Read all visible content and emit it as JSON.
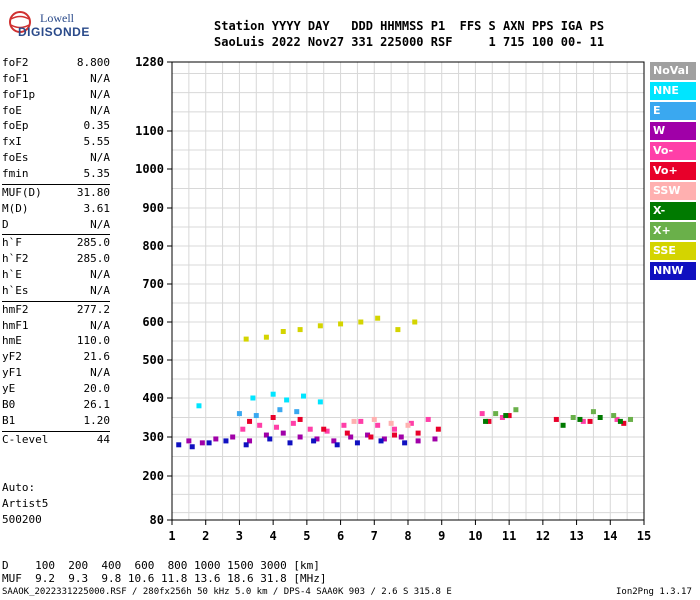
{
  "logo": {
    "line1": "Lowell",
    "line2": "DIGISONDE"
  },
  "header": {
    "row1": "Station YYYY DAY   DDD HHMMSS P1  FFS S AXN PPS IGA PS",
    "row2": "SaoLuis 2022 Nov27 331 225000 RSF     1 715 100 00- 11"
  },
  "params": [
    {
      "label": "foF2",
      "value": "8.800"
    },
    {
      "label": "foF1",
      "value": "N/A"
    },
    {
      "label": "foF1p",
      "value": "N/A"
    },
    {
      "label": "foE",
      "value": "N/A"
    },
    {
      "label": "foEp",
      "value": "0.35"
    },
    {
      "label": "fxI",
      "value": "5.55"
    },
    {
      "label": "foEs",
      "value": "N/A"
    },
    {
      "label": "fmin",
      "value": "5.35"
    },
    {
      "label": "MUF(D)",
      "value": "31.80"
    },
    {
      "label": "M(D)",
      "value": "3.61"
    },
    {
      "label": "D",
      "value": "N/A"
    },
    {
      "label": "h`F",
      "value": "285.0"
    },
    {
      "label": "h`F2",
      "value": "285.0"
    },
    {
      "label": "h`E",
      "value": "N/A"
    },
    {
      "label": "h`Es",
      "value": "N/A"
    },
    {
      "label": "hmF2",
      "value": "277.2"
    },
    {
      "label": "hmF1",
      "value": "N/A"
    },
    {
      "label": "hmE",
      "value": "110.0"
    },
    {
      "label": "yF2",
      "value": "21.6"
    },
    {
      "label": "yF1",
      "value": "N/A"
    },
    {
      "label": "yE",
      "value": "20.0"
    },
    {
      "label": "B0",
      "value": "26.1"
    },
    {
      "label": "B1",
      "value": "1.20"
    },
    {
      "label": "C-level",
      "value": "44"
    }
  ],
  "autoscaling": {
    "line1": "Auto:",
    "line2": "Artist5",
    "line3": "500200"
  },
  "legend": [
    {
      "label": "NoVal",
      "color": "#a0a0a0",
      "text_color": "#ffffff"
    },
    {
      "label": "NNE",
      "color": "#00e5ff",
      "text_color": "#ffffff"
    },
    {
      "label": "E",
      "color": "#3aa8f0",
      "text_color": "#ffffff"
    },
    {
      "label": "W",
      "color": "#a000a8",
      "text_color": "#ffffff"
    },
    {
      "label": "Vo-",
      "color": "#ff3fa8",
      "text_color": "#ffffff"
    },
    {
      "label": "Vo+",
      "color": "#e8002a",
      "text_color": "#ffffff"
    },
    {
      "label": "SSW",
      "color": "#ffb0b0",
      "text_color": "#ffffff"
    },
    {
      "label": "X-",
      "color": "#007a00",
      "text_color": "#ffffff"
    },
    {
      "label": "X+",
      "color": "#6ab04a",
      "text_color": "#ffffff"
    },
    {
      "label": "SSE",
      "color": "#d4d400",
      "text_color": "#ffffff"
    },
    {
      "label": "NNW",
      "color": "#1010c0",
      "text_color": "#ffffff"
    }
  ],
  "muf_table": {
    "row1": "D    100  200  400  600  800 1000 1500 3000 [km]",
    "row2": "MUF  9.2  9.3  9.8 10.6 11.8 13.6 18.6 31.8 [MHz]"
  },
  "footer": {
    "left": "SAAOK_2022331225000.RSF / 280fx256h 50 kHz 5.0 km / DPS-4 SAA0K 903 / 2.6 S 315.8 E",
    "right": "Ion2Png 1.3.17"
  },
  "chart_data": {
    "type": "scatter",
    "title": "",
    "xlabel": "",
    "ylabel": "",
    "xlim": [
      1,
      15
    ],
    "ylim": [
      80,
      1280
    ],
    "x_ticks": [
      1,
      2,
      3,
      4,
      5,
      6,
      7,
      8,
      9,
      10,
      11,
      12,
      13,
      14,
      15
    ],
    "y_ticks": [
      80,
      200,
      300,
      400,
      500,
      600,
      700,
      800,
      900,
      1000,
      1100,
      1280
    ],
    "y_scale": "nonlinear",
    "grid": true,
    "legend_position": "right",
    "series": [
      {
        "name": "W",
        "x": [
          1.5,
          1.9,
          2.3,
          2.8,
          3.3,
          3.8,
          4.3,
          4.8,
          5.3,
          5.8,
          6.3,
          6.8,
          7.3,
          7.8,
          8.3,
          8.8
        ],
        "y": [
          290,
          285,
          295,
          300,
          290,
          305,
          310,
          300,
          295,
          290,
          300,
          305,
          295,
          300,
          290,
          295
        ]
      },
      {
        "name": "Vo-",
        "x": [
          3.1,
          3.6,
          4.1,
          4.6,
          5.1,
          5.6,
          6.1,
          6.6,
          7.1,
          7.6,
          8.1,
          8.6,
          10.2,
          10.8,
          13.2,
          14.2
        ],
        "y": [
          320,
          330,
          325,
          335,
          320,
          315,
          330,
          340,
          330,
          320,
          335,
          345,
          360,
          350,
          340,
          345
        ]
      },
      {
        "name": "Vo+",
        "x": [
          3.3,
          4.0,
          4.8,
          5.5,
          6.2,
          6.9,
          7.6,
          8.3,
          8.9,
          10.4,
          11.0,
          12.4,
          13.4,
          14.4
        ],
        "y": [
          340,
          350,
          345,
          320,
          310,
          300,
          305,
          310,
          320,
          340,
          355,
          345,
          340,
          335
        ]
      },
      {
        "name": "NNW",
        "x": [
          1.2,
          1.6,
          2.1,
          2.6,
          3.2,
          3.9,
          4.5,
          5.2,
          5.9,
          6.5,
          7.2,
          7.9
        ],
        "y": [
          280,
          275,
          285,
          290,
          280,
          295,
          285,
          290,
          280,
          285,
          290,
          285
        ]
      },
      {
        "name": "NNE",
        "x": [
          1.8,
          3.4,
          4.0,
          4.4,
          4.9,
          5.4
        ],
        "y": [
          380,
          400,
          410,
          395,
          405,
          390
        ]
      },
      {
        "name": "E",
        "x": [
          3.0,
          3.5,
          4.2,
          4.7
        ],
        "y": [
          360,
          355,
          370,
          365
        ]
      },
      {
        "name": "SSE",
        "x": [
          3.2,
          3.8,
          4.3,
          4.8,
          5.4,
          6.0,
          6.6,
          7.1,
          7.7,
          8.2
        ],
        "y": [
          555,
          560,
          575,
          580,
          590,
          595,
          600,
          610,
          580,
          600
        ]
      },
      {
        "name": "X-",
        "x": [
          10.3,
          10.9,
          12.6,
          13.1,
          13.7,
          14.3
        ],
        "y": [
          340,
          355,
          330,
          345,
          350,
          340
        ]
      },
      {
        "name": "X+",
        "x": [
          10.6,
          11.2,
          12.9,
          13.5,
          14.1,
          14.6
        ],
        "y": [
          360,
          370,
          350,
          365,
          355,
          345
        ]
      },
      {
        "name": "SSW",
        "x": [
          6.4,
          7.0,
          7.5,
          8.0
        ],
        "y": [
          340,
          345,
          335,
          330
        ]
      }
    ]
  }
}
